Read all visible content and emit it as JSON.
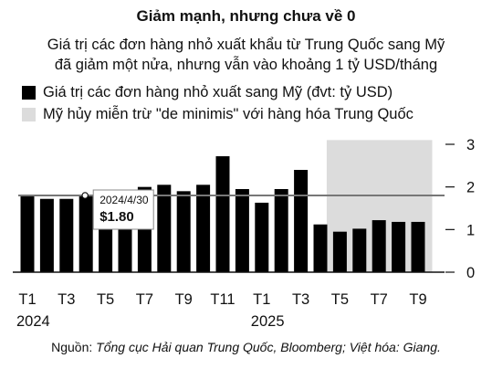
{
  "title": "Giảm mạnh, nhưng chưa về 0",
  "subtitle_line1": "Giá trị các đơn hàng nhỏ xuất khẩu từ Trung Quốc sang Mỹ",
  "subtitle_line2": "đã giảm một nửa, nhưng vẫn vào khoảng 1 tỷ USD/tháng",
  "legend": {
    "series_label": "Giá trị các đơn hàng nhỏ xuất sang Mỹ (đvt: tỷ USD)",
    "shade_label": "Mỹ hủy miễn trừ \"de minimis\" với hàng hóa Trung Quốc"
  },
  "source_prefix": "Nguồn: ",
  "source_text": "Tổng cục Hải quan Trung Quốc, Bloomberg; Việt hóa: Giang.",
  "colors": {
    "bar": "#000000",
    "shade": "#dcdcdc",
    "refline": "#777777"
  },
  "chart_data": {
    "type": "bar",
    "categories": [
      "2024-01",
      "2024-02",
      "2024-03",
      "2024-04",
      "2024-05",
      "2024-06",
      "2024-07",
      "2024-08",
      "2024-09",
      "2024-10",
      "2024-11",
      "2024-12",
      "2025-01",
      "2025-02",
      "2025-03",
      "2025-04",
      "2025-05",
      "2025-06",
      "2025-07",
      "2025-08",
      "2025-09"
    ],
    "x_tick_labels": [
      "T1",
      "",
      "T3",
      "",
      "T5",
      "",
      "T7",
      "",
      "T9",
      "",
      "T11",
      "",
      "T1",
      "",
      "T3",
      "",
      "T5",
      "",
      "T7",
      "",
      "T9"
    ],
    "year_labels": [
      {
        "index": 0,
        "label": "2024"
      },
      {
        "index": 12,
        "label": "2025"
      }
    ],
    "values": [
      1.78,
      1.72,
      1.72,
      1.8,
      1.57,
      1.88,
      2.0,
      2.05,
      1.9,
      2.05,
      2.72,
      1.95,
      1.63,
      1.95,
      2.4,
      1.12,
      0.95,
      1.02,
      1.22,
      1.18,
      1.18
    ],
    "shaded_range": [
      "2025-05",
      "2025-09"
    ],
    "reference_line": 1.8,
    "callout": {
      "category": "2024-04",
      "date": "2024/4/30",
      "value_label": "$1.80"
    },
    "y_ticks": [
      0,
      1,
      2,
      3
    ],
    "ylim": [
      0,
      3.1
    ],
    "legend_position": "top-left",
    "grid": false
  }
}
